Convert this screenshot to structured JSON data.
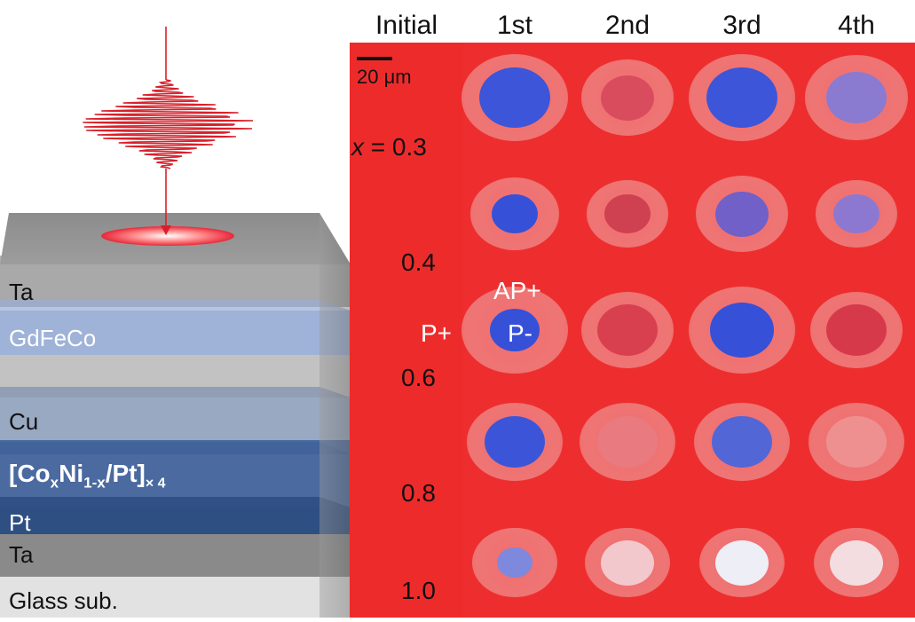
{
  "layers": {
    "ta_top": "Ta",
    "gdfeco": "GdFeCo",
    "cu": "Cu",
    "multilayer_base": "[Co",
    "multilayer_x": "x",
    "multilayer_ni": "Ni",
    "multilayer_1x": "1-x",
    "multilayer_pt": "/Pt]",
    "multilayer_rep": "× 4",
    "pt": "Pt",
    "ta_bottom": "Ta",
    "substrate": "Glass sub."
  },
  "columns": [
    "Initial",
    "1st",
    "2nd",
    "3rd",
    "4th"
  ],
  "scale": {
    "label": "20 μm"
  },
  "rows": [
    {
      "label_prefix": "x",
      "label_value": " = 0.3"
    },
    {
      "label_value": "0.4"
    },
    {
      "label_value": "0.6"
    },
    {
      "label_value": "0.8"
    },
    {
      "label_value": "1.0"
    }
  ],
  "annotations": {
    "ap_plus": "AP+",
    "p_plus": "P+",
    "p_minus": "P-"
  },
  "colors": {
    "background_red": "#ee2e2e",
    "switched_blue": "#3b4fd6",
    "pulse": "#d8202a"
  }
}
